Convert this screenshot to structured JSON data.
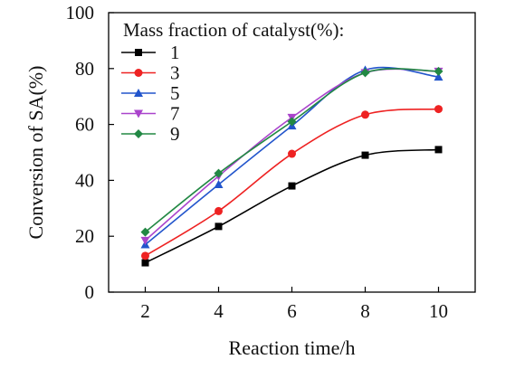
{
  "chart_data": {
    "type": "line",
    "title": "",
    "xlabel": "Reaction time/h",
    "ylabel": "Conversion of SA(%)",
    "x": [
      2,
      4,
      6,
      8,
      10
    ],
    "xlim": [
      1,
      11
    ],
    "ylim": [
      0,
      100
    ],
    "xticks": [
      2,
      4,
      6,
      8,
      10
    ],
    "yticks": [
      0,
      20,
      40,
      60,
      80,
      100
    ],
    "grid": false,
    "legend": {
      "title": "Mass fraction of catalyst(%):",
      "placement": "top-left"
    },
    "series": [
      {
        "name": "1",
        "color": "#000000",
        "marker": "square",
        "values": [
          10.5,
          23.5,
          38,
          49,
          51
        ]
      },
      {
        "name": "3",
        "color": "#ee2222",
        "marker": "circle",
        "values": [
          13,
          29,
          49.5,
          63.5,
          65.5
        ]
      },
      {
        "name": "5",
        "color": "#2255cc",
        "marker": "triangle-up",
        "values": [
          17,
          38.5,
          59.5,
          79.5,
          77
        ]
      },
      {
        "name": "7",
        "color": "#aa44cc",
        "marker": "triangle-down",
        "values": [
          18.5,
          41.5,
          62.5,
          78.5,
          79
        ]
      },
      {
        "name": "9",
        "color": "#228844",
        "marker": "diamond",
        "values": [
          21.5,
          42.5,
          61,
          78.5,
          79
        ]
      }
    ]
  }
}
